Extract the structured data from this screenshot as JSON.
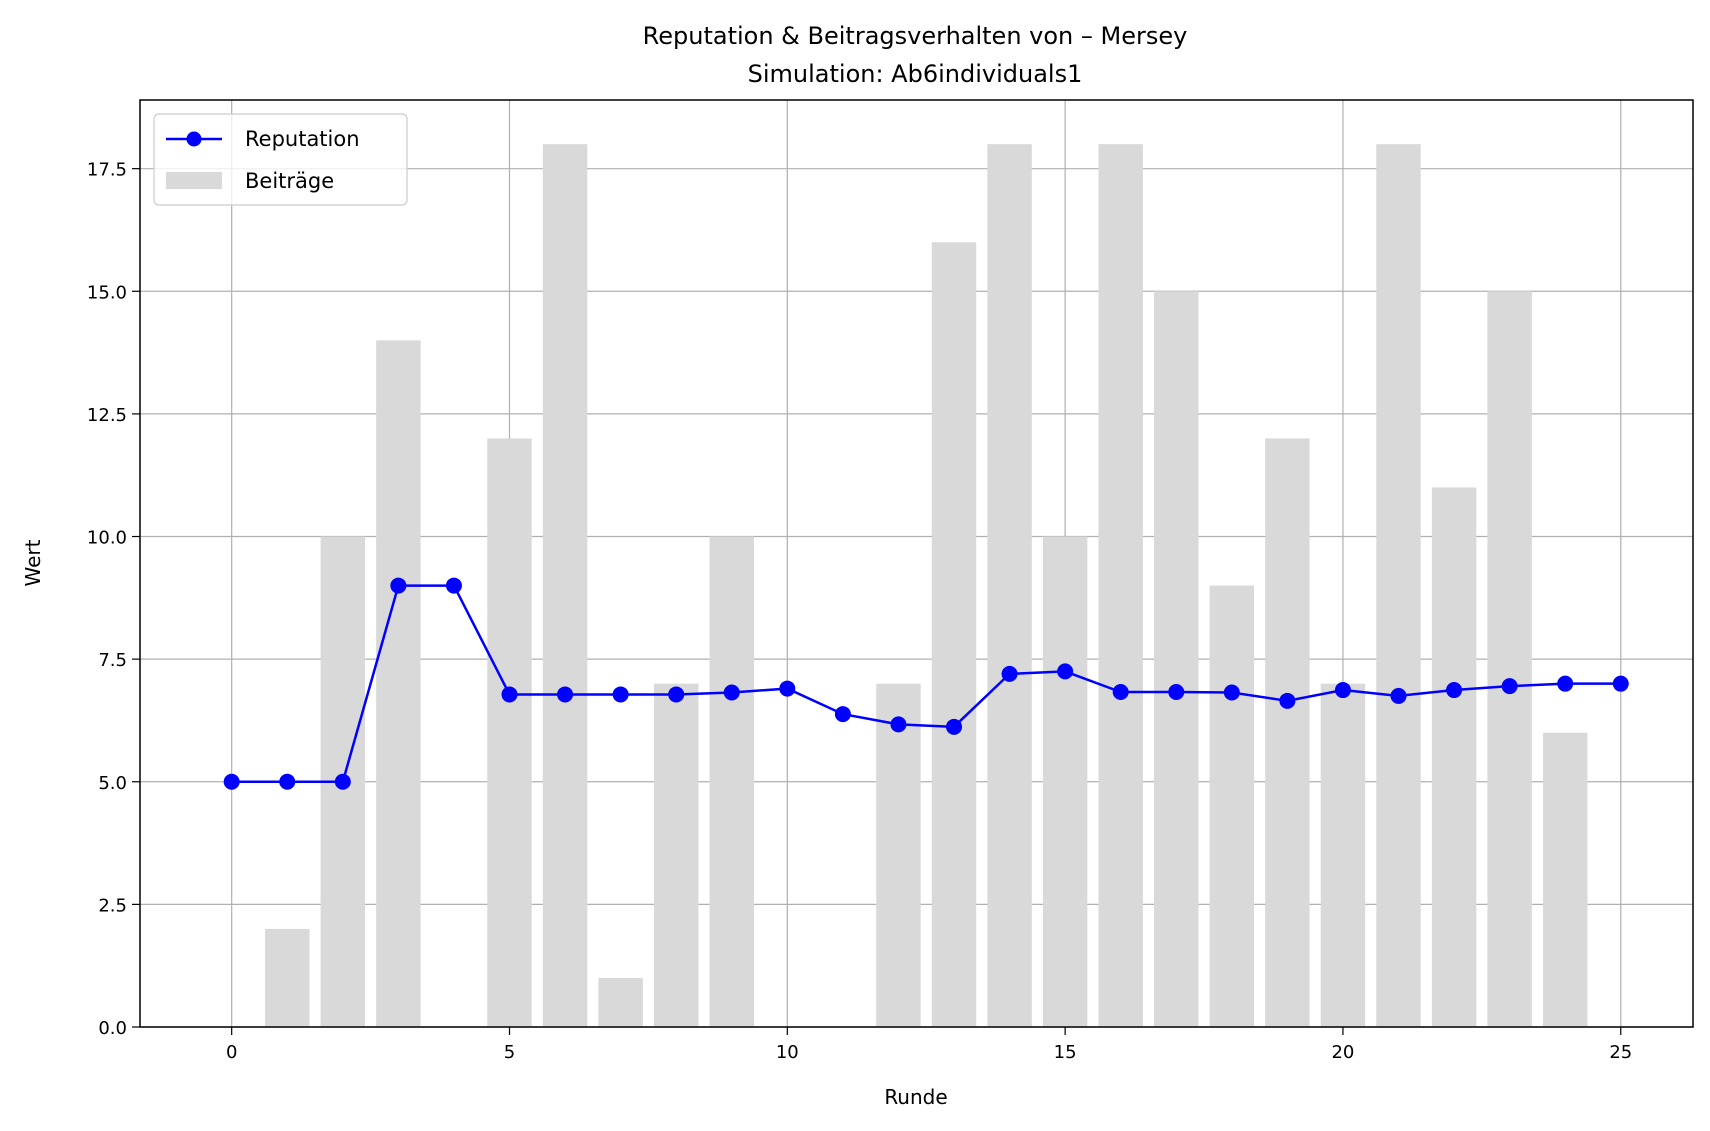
{
  "chart_data": {
    "type": "bar",
    "title": "Reputation & Beitragsverhalten von – Mersey",
    "subtitle": "Simulation: Ab6individuals1",
    "xlabel": "Runde",
    "ylabel": "Wert",
    "xlim": [
      -1.65,
      26.3
    ],
    "ylim": [
      0,
      18.9
    ],
    "x_ticks": [
      0,
      5,
      10,
      15,
      20,
      25
    ],
    "y_ticks": [
      0.0,
      2.5,
      5.0,
      7.5,
      10.0,
      12.5,
      15.0,
      17.5
    ],
    "x_tick_labels": [
      "0",
      "5",
      "10",
      "15",
      "20",
      "25"
    ],
    "y_tick_labels": [
      "0.0",
      "2.5",
      "5.0",
      "7.5",
      "10.0",
      "12.5",
      "15.0",
      "17.5"
    ],
    "grid": true,
    "legend": {
      "placement": "upper left"
    },
    "x": [
      0,
      1,
      2,
      3,
      4,
      5,
      6,
      7,
      8,
      9,
      10,
      11,
      12,
      13,
      14,
      15,
      16,
      17,
      18,
      19,
      20,
      21,
      22,
      23,
      24,
      25
    ],
    "series": [
      {
        "name": "Reputation",
        "type": "line",
        "marker": "circle",
        "color": "#0000ff",
        "values": [
          5.0,
          5.0,
          5.0,
          9.0,
          9.0,
          6.78,
          6.78,
          6.78,
          6.78,
          6.82,
          6.9,
          6.38,
          6.17,
          6.12,
          7.2,
          7.25,
          6.83,
          6.83,
          6.82,
          6.65,
          6.87,
          6.75,
          6.87,
          6.95,
          7.0,
          7.0
        ]
      },
      {
        "name": "Beiträge",
        "type": "bar",
        "color": "#d9d9d9",
        "values": [
          0,
          2,
          10,
          14,
          0,
          12,
          18,
          1,
          7,
          10,
          0,
          0,
          7,
          16,
          18,
          10,
          18,
          15,
          9,
          12,
          7,
          18,
          11,
          15,
          6,
          0
        ]
      }
    ]
  }
}
